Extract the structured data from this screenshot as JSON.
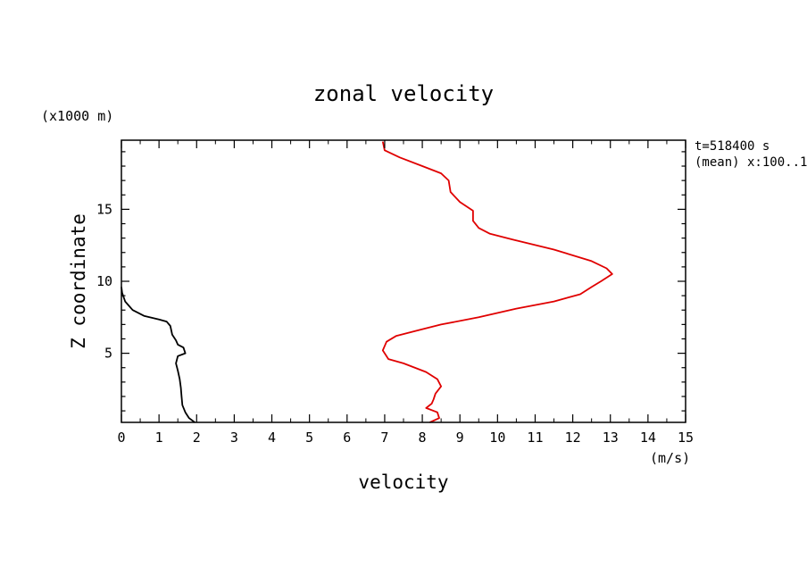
{
  "chart_data": {
    "type": "line",
    "title": "zonal velocity",
    "xlabel": "velocity",
    "ylabel": "Z coordinate",
    "x_unit": "(m/s)",
    "y_unit": "(x1000 m)",
    "xlim": [
      0,
      15
    ],
    "ylim": [
      0.2,
      19.8
    ],
    "xticks": [
      0,
      1,
      2,
      3,
      4,
      5,
      6,
      7,
      8,
      9,
      10,
      11,
      12,
      13,
      14,
      15
    ],
    "yticks": [
      5,
      10,
      15
    ],
    "x_minor_step": 0.5,
    "y_minor_step": 1,
    "grid": false,
    "annotations": [
      "t=518400 s",
      "(mean) x:100..1"
    ],
    "series": [
      {
        "name": "black profile",
        "color": "#000000",
        "points": [
          [
            1.95,
            0.2
          ],
          [
            1.8,
            0.5
          ],
          [
            1.7,
            0.9
          ],
          [
            1.62,
            1.4
          ],
          [
            1.6,
            2.0
          ],
          [
            1.58,
            2.6
          ],
          [
            1.55,
            3.2
          ],
          [
            1.5,
            3.8
          ],
          [
            1.45,
            4.3
          ],
          [
            1.5,
            4.8
          ],
          [
            1.7,
            5.0
          ],
          [
            1.65,
            5.4
          ],
          [
            1.5,
            5.6
          ],
          [
            1.45,
            5.9
          ],
          [
            1.35,
            6.3
          ],
          [
            1.3,
            6.9
          ],
          [
            1.2,
            7.2
          ],
          [
            1.0,
            7.35
          ],
          [
            0.6,
            7.6
          ],
          [
            0.3,
            8.0
          ],
          [
            0.1,
            8.6
          ],
          [
            0.02,
            9.2
          ],
          [
            0.0,
            9.6
          ]
        ]
      },
      {
        "name": "red profile",
        "color": "#e00000",
        "points": [
          [
            8.2,
            0.2
          ],
          [
            8.45,
            0.5
          ],
          [
            8.4,
            0.9
          ],
          [
            8.1,
            1.2
          ],
          [
            8.25,
            1.5
          ],
          [
            8.3,
            1.8
          ],
          [
            8.35,
            2.2
          ],
          [
            8.5,
            2.7
          ],
          [
            8.4,
            3.2
          ],
          [
            8.1,
            3.7
          ],
          [
            7.5,
            4.3
          ],
          [
            7.1,
            4.6
          ],
          [
            6.95,
            5.2
          ],
          [
            7.05,
            5.8
          ],
          [
            7.3,
            6.2
          ],
          [
            7.9,
            6.6
          ],
          [
            8.5,
            7.0
          ],
          [
            9.5,
            7.5
          ],
          [
            10.5,
            8.1
          ],
          [
            11.5,
            8.6
          ],
          [
            12.2,
            9.1
          ],
          [
            12.5,
            9.6
          ],
          [
            12.75,
            10.0
          ],
          [
            13.05,
            10.5
          ],
          [
            12.9,
            10.9
          ],
          [
            12.5,
            11.4
          ],
          [
            11.5,
            12.2
          ],
          [
            10.4,
            12.9
          ],
          [
            9.8,
            13.3
          ],
          [
            9.5,
            13.7
          ],
          [
            9.35,
            14.2
          ],
          [
            9.35,
            14.9
          ],
          [
            9.0,
            15.5
          ],
          [
            8.75,
            16.2
          ],
          [
            8.7,
            17.0
          ],
          [
            8.5,
            17.5
          ],
          [
            8.0,
            18.0
          ],
          [
            7.4,
            18.6
          ],
          [
            7.0,
            19.1
          ],
          [
            6.95,
            19.7
          ]
        ]
      }
    ]
  }
}
